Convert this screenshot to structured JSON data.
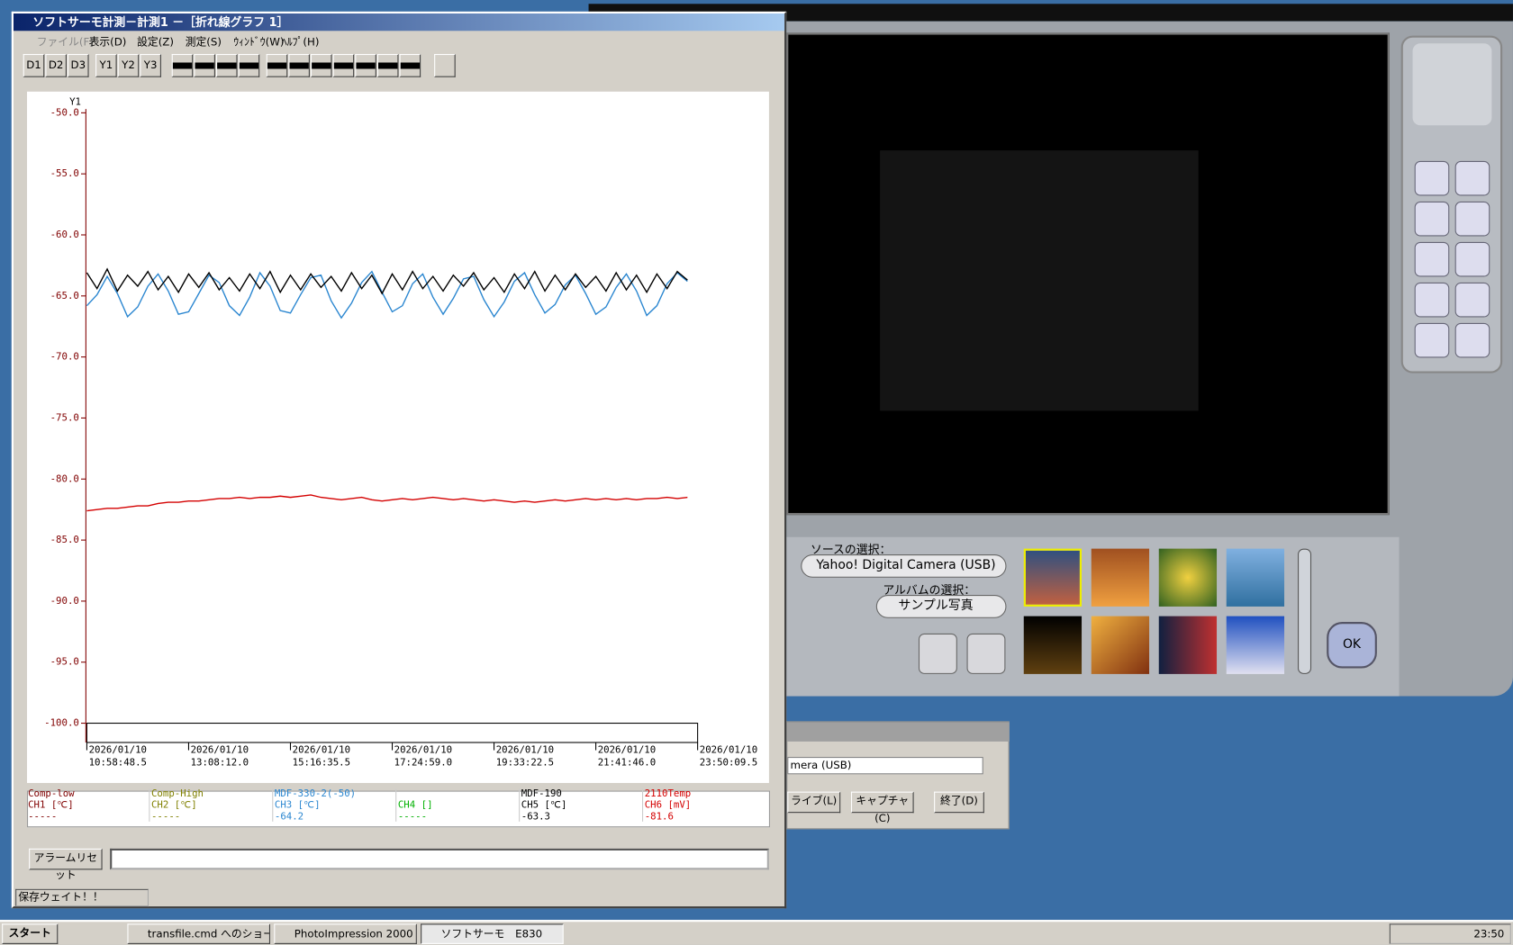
{
  "main_window": {
    "title": "ソフトサーモ計測－計測1 －［折れ線グラフ 1］",
    "menu": [
      "ファイル(F)",
      "表示(D)",
      "設定(Z)",
      "測定(S)",
      "ｳｨﾝﾄﾞｳ(W)",
      "ﾍﾙﾌﾟ(H)"
    ],
    "toolbar": [
      "D1",
      "D2",
      "D3",
      "Y1",
      "Y2",
      "Y3"
    ],
    "alarm_reset": "アラームリセット",
    "status": "保存ウェイト！！"
  },
  "chart_data": {
    "type": "line",
    "y_axis_label": "Y1",
    "ylim": [
      -100,
      -50
    ],
    "yticks": [
      {
        "value": -50,
        "label": "-50.0"
      },
      {
        "value": -55,
        "label": "-55.0"
      },
      {
        "value": -60,
        "label": "-60.0"
      },
      {
        "value": -65,
        "label": "-65.0"
      },
      {
        "value": -70,
        "label": "-70.0"
      },
      {
        "value": -75,
        "label": "-75.0"
      },
      {
        "value": -80,
        "label": "-80.0"
      },
      {
        "value": -85,
        "label": "-85.0"
      },
      {
        "value": -90,
        "label": "-90.0"
      },
      {
        "value": -95,
        "label": "-95.0"
      },
      {
        "value": -100,
        "label": "-100.0"
      }
    ],
    "xlim": [
      0,
      6
    ],
    "xticks": [
      {
        "value": 0,
        "label": "2026/01/10 10:58:48.5"
      },
      {
        "value": 1,
        "label": "2026/01/10 13:08:12.0"
      },
      {
        "value": 2,
        "label": "2026/01/10 15:16:35.5"
      },
      {
        "value": 3,
        "label": "2026/01/10 17:24:59.0"
      },
      {
        "value": 4,
        "label": "2026/01/10 19:33:22.5"
      },
      {
        "value": 5,
        "label": "2026/01/10 21:41:46.0"
      },
      {
        "value": 6,
        "label": "2026/01/10 23:50:09.5"
      }
    ],
    "x": [
      0,
      0.1,
      0.2,
      0.3,
      0.4,
      0.5,
      0.6,
      0.7,
      0.8,
      0.9,
      1,
      1.1,
      1.2,
      1.3,
      1.4,
      1.5,
      1.6,
      1.7,
      1.8,
      1.9,
      2,
      2.1,
      2.2,
      2.3,
      2.4,
      2.5,
      2.6,
      2.7,
      2.8,
      2.9,
      3,
      3.1,
      3.2,
      3.3,
      3.4,
      3.5,
      3.6,
      3.7,
      3.8,
      3.9,
      4,
      4.1,
      4.2,
      4.3,
      4.4,
      4.5,
      4.6,
      4.7,
      4.8,
      4.9,
      5,
      5.1,
      5.2,
      5.3,
      5.4,
      5.5,
      5.6,
      5.7,
      5.8,
      5.9
    ],
    "series": [
      {
        "name": "Comp-low",
        "channel": "CH1 [℃]",
        "reading": "-----",
        "color": "#800000"
      },
      {
        "name": "Comp-High",
        "channel": "CH2 [℃]",
        "reading": "-----",
        "color": "#808000"
      },
      {
        "name": "MDF-330-2(-50)",
        "channel": "CH3 [℃]",
        "reading": -64.2,
        "color": "#2a86d0",
        "values": [
          -65.8,
          -64.9,
          -63.4,
          -64.8,
          -66.7,
          -65.9,
          -64.2,
          -63.2,
          -64.6,
          -66.5,
          -66.3,
          -64.8,
          -63.3,
          -63.9,
          -65.8,
          -66.6,
          -65.1,
          -63.1,
          -64.2,
          -66.2,
          -66.4,
          -64.9,
          -63.5,
          -63.3,
          -65.4,
          -66.8,
          -65.6,
          -63.9,
          -63.0,
          -64.7,
          -66.3,
          -65.8,
          -64.0,
          -63.2,
          -65.1,
          -66.5,
          -65.2,
          -63.6,
          -63.4,
          -65.3,
          -66.7,
          -65.5,
          -63.8,
          -63.1,
          -64.9,
          -66.4,
          -65.7,
          -64.1,
          -63.3,
          -64.8,
          -66.5,
          -65.9,
          -64.3,
          -63.2,
          -64.6,
          -66.6,
          -65.8,
          -64.0,
          -63.1,
          -63.8
        ]
      },
      {
        "channel": "CH4 []",
        "reading": "-----",
        "color": "#00b000"
      },
      {
        "name": "MDF-190",
        "channel": "CH5 [℃]",
        "reading": -63.3,
        "color": "#000000",
        "values": [
          -63.1,
          -64.4,
          -62.8,
          -64.6,
          -63.3,
          -64.2,
          -63.0,
          -64.5,
          -63.4,
          -64.7,
          -63.2,
          -64.3,
          -63.1,
          -64.5,
          -63.5,
          -64.6,
          -63.2,
          -64.4,
          -63.0,
          -64.7,
          -63.3,
          -64.5,
          -63.2,
          -64.3,
          -63.4,
          -64.6,
          -63.1,
          -64.4,
          -63.3,
          -64.8,
          -63.2,
          -64.5,
          -63.0,
          -64.4,
          -63.4,
          -64.6,
          -63.3,
          -64.2,
          -63.1,
          -64.5,
          -63.5,
          -64.7,
          -63.2,
          -64.4,
          -63.0,
          -64.6,
          -63.3,
          -64.5,
          -63.2,
          -64.3,
          -63.4,
          -64.6,
          -63.1,
          -64.5,
          -63.3,
          -64.7,
          -63.2,
          -64.4,
          -63.0,
          -63.7
        ]
      },
      {
        "name": "2110Temp",
        "channel": "CH6 [mV]",
        "reading": -81.6,
        "color": "#d40000",
        "values": [
          -82.6,
          -82.5,
          -82.4,
          -82.4,
          -82.3,
          -82.2,
          -82.2,
          -82.0,
          -81.9,
          -81.9,
          -81.8,
          -81.8,
          -81.7,
          -81.6,
          -81.6,
          -81.5,
          -81.6,
          -81.5,
          -81.5,
          -81.4,
          -81.5,
          -81.4,
          -81.3,
          -81.5,
          -81.6,
          -81.7,
          -81.6,
          -81.5,
          -81.7,
          -81.8,
          -81.7,
          -81.6,
          -81.7,
          -81.6,
          -81.5,
          -81.6,
          -81.7,
          -81.6,
          -81.7,
          -81.8,
          -81.7,
          -81.8,
          -81.9,
          -81.8,
          -81.9,
          -81.8,
          -81.7,
          -81.8,
          -81.7,
          -81.6,
          -81.7,
          -81.6,
          -81.7,
          -81.6,
          -81.7,
          -81.6,
          -81.6,
          -81.5,
          -81.6,
          -81.5
        ]
      }
    ]
  },
  "photo_window": {
    "source_label": "ソースの選択：",
    "source": "Yahoo! Digital Camera (USB)",
    "album_label": "アルバムの選択：",
    "album": "サンプル写真",
    "ok": "OK"
  },
  "capture_dialog": {
    "device": "mera (USB)",
    "buttons": [
      "ライブ(L)",
      "キャプチャ(C)",
      "終了(D)"
    ]
  },
  "taskbar": {
    "start": "スタート",
    "tasks": [
      "transfile.cmd へのショート...",
      "PhotoImpression 2000",
      "ソフトサーモ　E830"
    ],
    "clock": "23:50"
  }
}
